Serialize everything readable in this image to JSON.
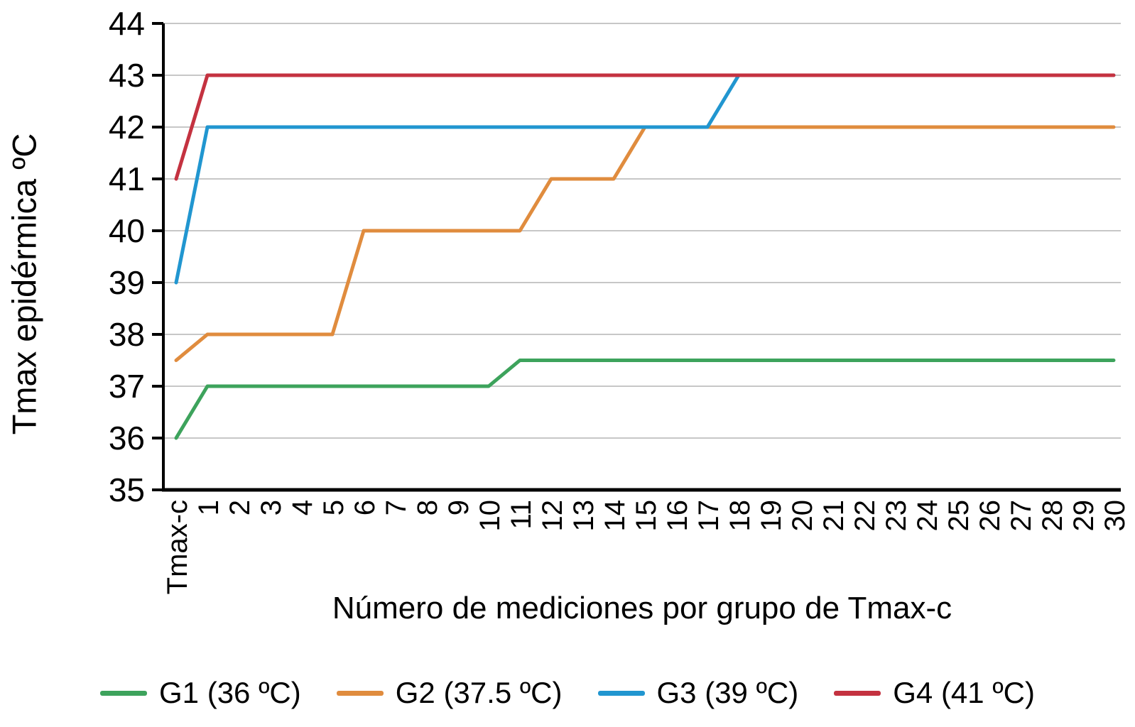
{
  "chart_data": {
    "type": "line",
    "title": "",
    "xlabel": "Número de mediciones por grupo de Tmax-c",
    "ylabel": "Tmax epidérmica ºC",
    "categories": [
      "Tmax-c",
      "1",
      "2",
      "3",
      "4",
      "5",
      "6",
      "7",
      "8",
      "9",
      "10",
      "11",
      "12",
      "13",
      "14",
      "15",
      "16",
      "17",
      "18",
      "19",
      "20",
      "21",
      "22",
      "23",
      "24",
      "25",
      "26",
      "27",
      "28",
      "29",
      "30"
    ],
    "yticks": [
      35,
      36,
      37,
      38,
      39,
      40,
      41,
      42,
      43,
      44
    ],
    "ylim": [
      35,
      44
    ],
    "grid": true,
    "legend_position": "bottom",
    "series": [
      {
        "name": "G1 (36 ºC)",
        "color": "#3DA35C",
        "values": [
          36,
          37,
          37,
          37,
          37,
          37,
          37,
          37,
          37,
          37,
          37,
          37.5,
          37.5,
          37.5,
          37.5,
          37.5,
          37.5,
          37.5,
          37.5,
          37.5,
          37.5,
          37.5,
          37.5,
          37.5,
          37.5,
          37.5,
          37.5,
          37.5,
          37.5,
          37.5,
          37.5
        ]
      },
      {
        "name": "G2 (37.5 ºC)",
        "color": "#E08C3E",
        "values": [
          37.5,
          38,
          38,
          38,
          38,
          38,
          40,
          40,
          40,
          40,
          40,
          40,
          41,
          41,
          41,
          42,
          42,
          42,
          42,
          42,
          42,
          42,
          42,
          42,
          42,
          42,
          42,
          42,
          42,
          42,
          42
        ]
      },
      {
        "name": "G3 (39 ºC)",
        "color": "#2196D0",
        "values": [
          39,
          42,
          42,
          42,
          42,
          42,
          42,
          42,
          42,
          42,
          42,
          42,
          42,
          42,
          42,
          42,
          42,
          42,
          43,
          43,
          43,
          43,
          43,
          43,
          43,
          43,
          43,
          43,
          43,
          43,
          43
        ]
      },
      {
        "name": "G4 (41 ºC)",
        "color": "#C43240",
        "values": [
          41,
          43,
          43,
          43,
          43,
          43,
          43,
          43,
          43,
          43,
          43,
          43,
          43,
          43,
          43,
          43,
          43,
          43,
          43,
          43,
          43,
          43,
          43,
          43,
          43,
          43,
          43,
          43,
          43,
          43,
          43
        ]
      }
    ]
  },
  "colors": {
    "grid": "#C7C7C7",
    "axis": "#000000",
    "text": "#000000",
    "background": "#FFFFFF"
  }
}
